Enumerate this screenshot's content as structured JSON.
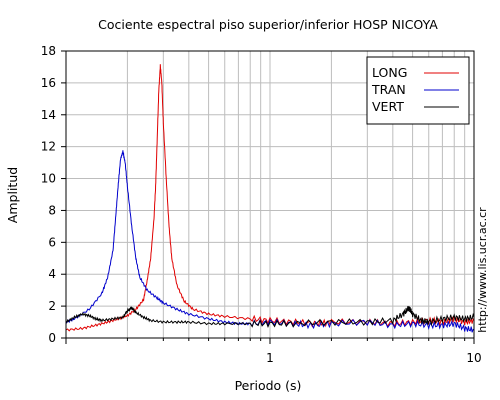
{
  "chart_data": {
    "type": "line",
    "title": "Cociente espectral piso superior/inferior  HOSP NICOYA",
    "xlabel": "Periodo (s)",
    "ylabel": "Amplitud",
    "side_label": "http://www.lis.ucr.ac.cr",
    "x_scale": "log",
    "xlim": [
      0.1,
      10
    ],
    "ylim": [
      0,
      18
    ],
    "x_tick_labels": [
      "1",
      "10"
    ],
    "y_ticks": [
      0,
      2,
      4,
      6,
      8,
      10,
      12,
      14,
      16,
      18
    ],
    "grid": true,
    "legend_position": "top-right",
    "series": [
      {
        "name": "LONG",
        "color": "#e00000",
        "points": [
          [
            0.1,
            0.5
          ],
          [
            0.12,
            0.6
          ],
          [
            0.14,
            0.8
          ],
          [
            0.16,
            1.0
          ],
          [
            0.18,
            1.2
          ],
          [
            0.2,
            1.4
          ],
          [
            0.22,
            1.8
          ],
          [
            0.24,
            2.4
          ],
          [
            0.25,
            3.6
          ],
          [
            0.26,
            5.0
          ],
          [
            0.27,
            7.5
          ],
          [
            0.275,
            9.5
          ],
          [
            0.28,
            12.5
          ],
          [
            0.285,
            15.5
          ],
          [
            0.29,
            17.1
          ],
          [
            0.295,
            16.0
          ],
          [
            0.3,
            13.5
          ],
          [
            0.31,
            10.0
          ],
          [
            0.32,
            7.0
          ],
          [
            0.33,
            5.0
          ],
          [
            0.35,
            3.3
          ],
          [
            0.38,
            2.3
          ],
          [
            0.42,
            1.8
          ],
          [
            0.5,
            1.5
          ],
          [
            0.6,
            1.35
          ],
          [
            0.8,
            1.2
          ],
          [
            1.0,
            1.1
          ],
          [
            1.3,
            1.0
          ],
          [
            1.7,
            0.9
          ],
          [
            2.0,
            1.0
          ],
          [
            3.0,
            1.0
          ],
          [
            4.0,
            0.9
          ],
          [
            5.0,
            1.0
          ],
          [
            6.0,
            1.1
          ],
          [
            7.0,
            1.0
          ],
          [
            8.0,
            1.2
          ],
          [
            9.0,
            1.0
          ],
          [
            10.0,
            1.1
          ]
        ]
      },
      {
        "name": "TRAN",
        "color": "#0000cc",
        "points": [
          [
            0.1,
            1.0
          ],
          [
            0.11,
            1.2
          ],
          [
            0.13,
            1.8
          ],
          [
            0.15,
            2.8
          ],
          [
            0.16,
            3.8
          ],
          [
            0.17,
            5.5
          ],
          [
            0.175,
            7.5
          ],
          [
            0.18,
            9.5
          ],
          [
            0.185,
            11.2
          ],
          [
            0.19,
            11.7
          ],
          [
            0.195,
            11.0
          ],
          [
            0.2,
            9.5
          ],
          [
            0.21,
            7.0
          ],
          [
            0.22,
            5.0
          ],
          [
            0.23,
            3.8
          ],
          [
            0.25,
            3.0
          ],
          [
            0.28,
            2.5
          ],
          [
            0.3,
            2.2
          ],
          [
            0.35,
            1.8
          ],
          [
            0.4,
            1.5
          ],
          [
            0.5,
            1.2
          ],
          [
            0.6,
            1.0
          ],
          [
            0.7,
            0.9
          ],
          [
            0.8,
            0.9
          ],
          [
            1.0,
            1.0
          ],
          [
            1.3,
            0.9
          ],
          [
            1.6,
            0.8
          ],
          [
            2.0,
            0.9
          ],
          [
            3.0,
            1.0
          ],
          [
            4.0,
            0.8
          ],
          [
            5.0,
            0.9
          ],
          [
            6.0,
            0.8
          ],
          [
            7.0,
            0.8
          ],
          [
            8.0,
            0.9
          ],
          [
            9.0,
            0.6
          ],
          [
            10.0,
            0.5
          ]
        ]
      },
      {
        "name": "VERT",
        "color": "#000000",
        "points": [
          [
            0.1,
            1.0
          ],
          [
            0.11,
            1.3
          ],
          [
            0.12,
            1.5
          ],
          [
            0.13,
            1.4
          ],
          [
            0.14,
            1.2
          ],
          [
            0.15,
            1.1
          ],
          [
            0.17,
            1.2
          ],
          [
            0.19,
            1.3
          ],
          [
            0.2,
            1.7
          ],
          [
            0.21,
            1.9
          ],
          [
            0.22,
            1.6
          ],
          [
            0.24,
            1.3
          ],
          [
            0.26,
            1.1
          ],
          [
            0.3,
            1.0
          ],
          [
            0.35,
            1.0
          ],
          [
            0.4,
            1.0
          ],
          [
            0.5,
            0.9
          ],
          [
            0.6,
            0.9
          ],
          [
            0.8,
            0.9
          ],
          [
            1.0,
            0.9
          ],
          [
            1.3,
            0.9
          ],
          [
            2.0,
            1.0
          ],
          [
            3.0,
            1.0
          ],
          [
            4.0,
            1.1
          ],
          [
            4.5,
            1.5
          ],
          [
            4.8,
            1.9
          ],
          [
            5.0,
            1.5
          ],
          [
            5.5,
            1.1
          ],
          [
            6.0,
            1.0
          ],
          [
            7.0,
            1.2
          ],
          [
            8.0,
            1.3
          ],
          [
            9.0,
            1.2
          ],
          [
            10.0,
            1.3
          ]
        ]
      }
    ]
  }
}
